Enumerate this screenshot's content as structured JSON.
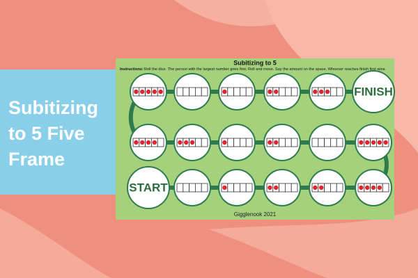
{
  "banner": {
    "lines": [
      "Subitizing",
      "to 5 Five",
      "Frame"
    ]
  },
  "board": {
    "title": "Subitizing to 5",
    "instructions": {
      "label": "Instructions:",
      "text": "Roll the dice. The person with the largest number goes first. Roll and move. Say the amount on the space. Whoever reaches finish first wins."
    },
    "rows": [
      [
        5,
        0,
        1,
        2,
        3,
        "FINISH"
      ],
      [
        4,
        3,
        1,
        2,
        0,
        5
      ],
      [
        "START",
        0,
        1,
        2,
        2,
        4
      ]
    ],
    "credit": "Gigglenook 2021"
  }
}
